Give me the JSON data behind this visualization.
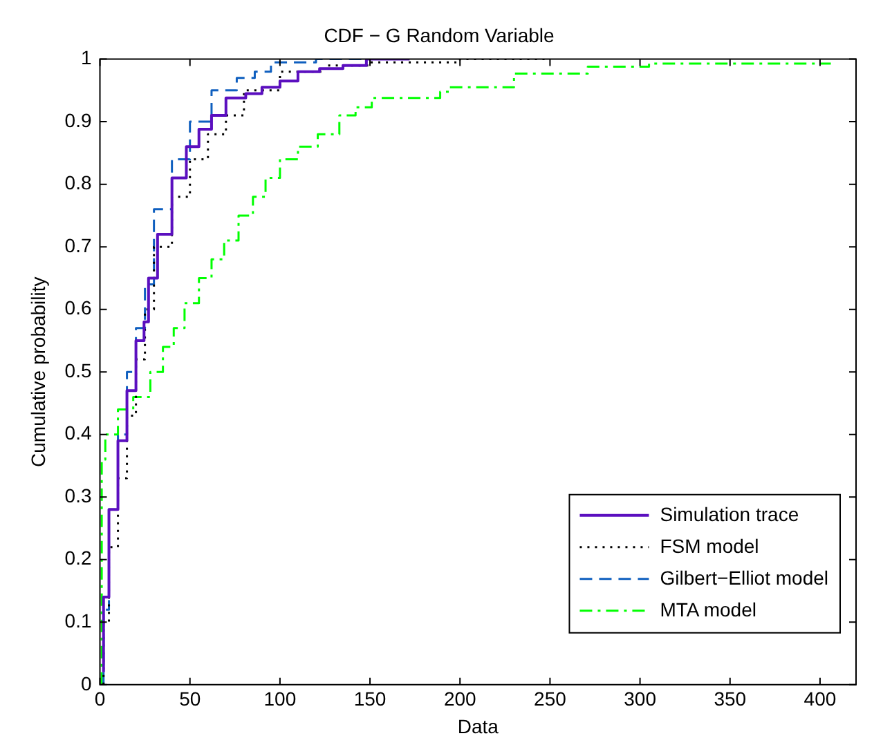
{
  "chart_data": {
    "type": "step",
    "title": "CDF − G Random Variable",
    "xlabel": "Data",
    "ylabel": "Cumulative probability",
    "xlim": [
      0,
      420
    ],
    "xticks": [
      0,
      50,
      100,
      150,
      200,
      250,
      300,
      350,
      400
    ],
    "ylim": [
      0,
      1
    ],
    "yticks": [
      0,
      0.1,
      0.2,
      0.3,
      0.4,
      0.5,
      0.6,
      0.7,
      0.8,
      0.9,
      1
    ],
    "grid": false,
    "legend": "bottom right",
    "marker": "none",
    "series": [
      {
        "name": "Simulation trace",
        "color": "#5b0fbf",
        "line_style": "solid",
        "x": [
          2,
          5,
          10,
          15,
          20,
          24.5,
          27,
          32,
          40,
          48,
          55,
          62,
          70,
          81,
          90,
          100,
          110,
          122,
          135,
          148,
          172
        ],
        "values": [
          0.02,
          0.14,
          0.28,
          0.39,
          0.47,
          0.55,
          0.58,
          0.65,
          0.72,
          0.81,
          0.86,
          0.888,
          0.91,
          0.938,
          0.945,
          0.955,
          0.965,
          0.98,
          0.985,
          0.99,
          1
        ]
      },
      {
        "name": "FSM model",
        "color": "#000000",
        "line_style": "dotted",
        "x": [
          2,
          5,
          10,
          15,
          20,
          25,
          30,
          40,
          50,
          60,
          70,
          80,
          100,
          125,
          150,
          200,
          250
        ],
        "values": [
          0,
          0.1,
          0.22,
          0.33,
          0.43,
          0.52,
          0.6,
          0.7,
          0.78,
          0.84,
          0.88,
          0.91,
          0.95,
          0.98,
          0.99,
          0.995,
          1
        ]
      },
      {
        "name": "Gilbert−Elliot model",
        "color": "#0f5fbf",
        "line_style": "dashed",
        "x": [
          2,
          5,
          10,
          15,
          20,
          25,
          30,
          40,
          50,
          62,
          76,
          86,
          95,
          120,
          160
        ],
        "values": [
          0,
          0.12,
          0.28,
          0.4,
          0.5,
          0.57,
          0.64,
          0.76,
          0.84,
          0.9,
          0.95,
          0.97,
          0.98,
          0.995,
          1
        ]
      },
      {
        "name": "MTA model",
        "color": "#00ff00",
        "line_style": "dashdot",
        "x": [
          1,
          3,
          10,
          18.5,
          28,
          35,
          41,
          47,
          55,
          62,
          69,
          77,
          85,
          92,
          100,
          110,
          121,
          133,
          142,
          151,
          189,
          194,
          230,
          271,
          305,
          346,
          406
        ],
        "values": [
          0,
          0.36,
          0.4,
          0.44,
          0.46,
          0.5,
          0.54,
          0.57,
          0.61,
          0.65,
          0.68,
          0.71,
          0.75,
          0.78,
          0.81,
          0.84,
          0.86,
          0.88,
          0.91,
          0.923,
          0.938,
          0.948,
          0.955,
          0.977,
          0.988,
          0.993,
          0.993
        ]
      }
    ]
  }
}
